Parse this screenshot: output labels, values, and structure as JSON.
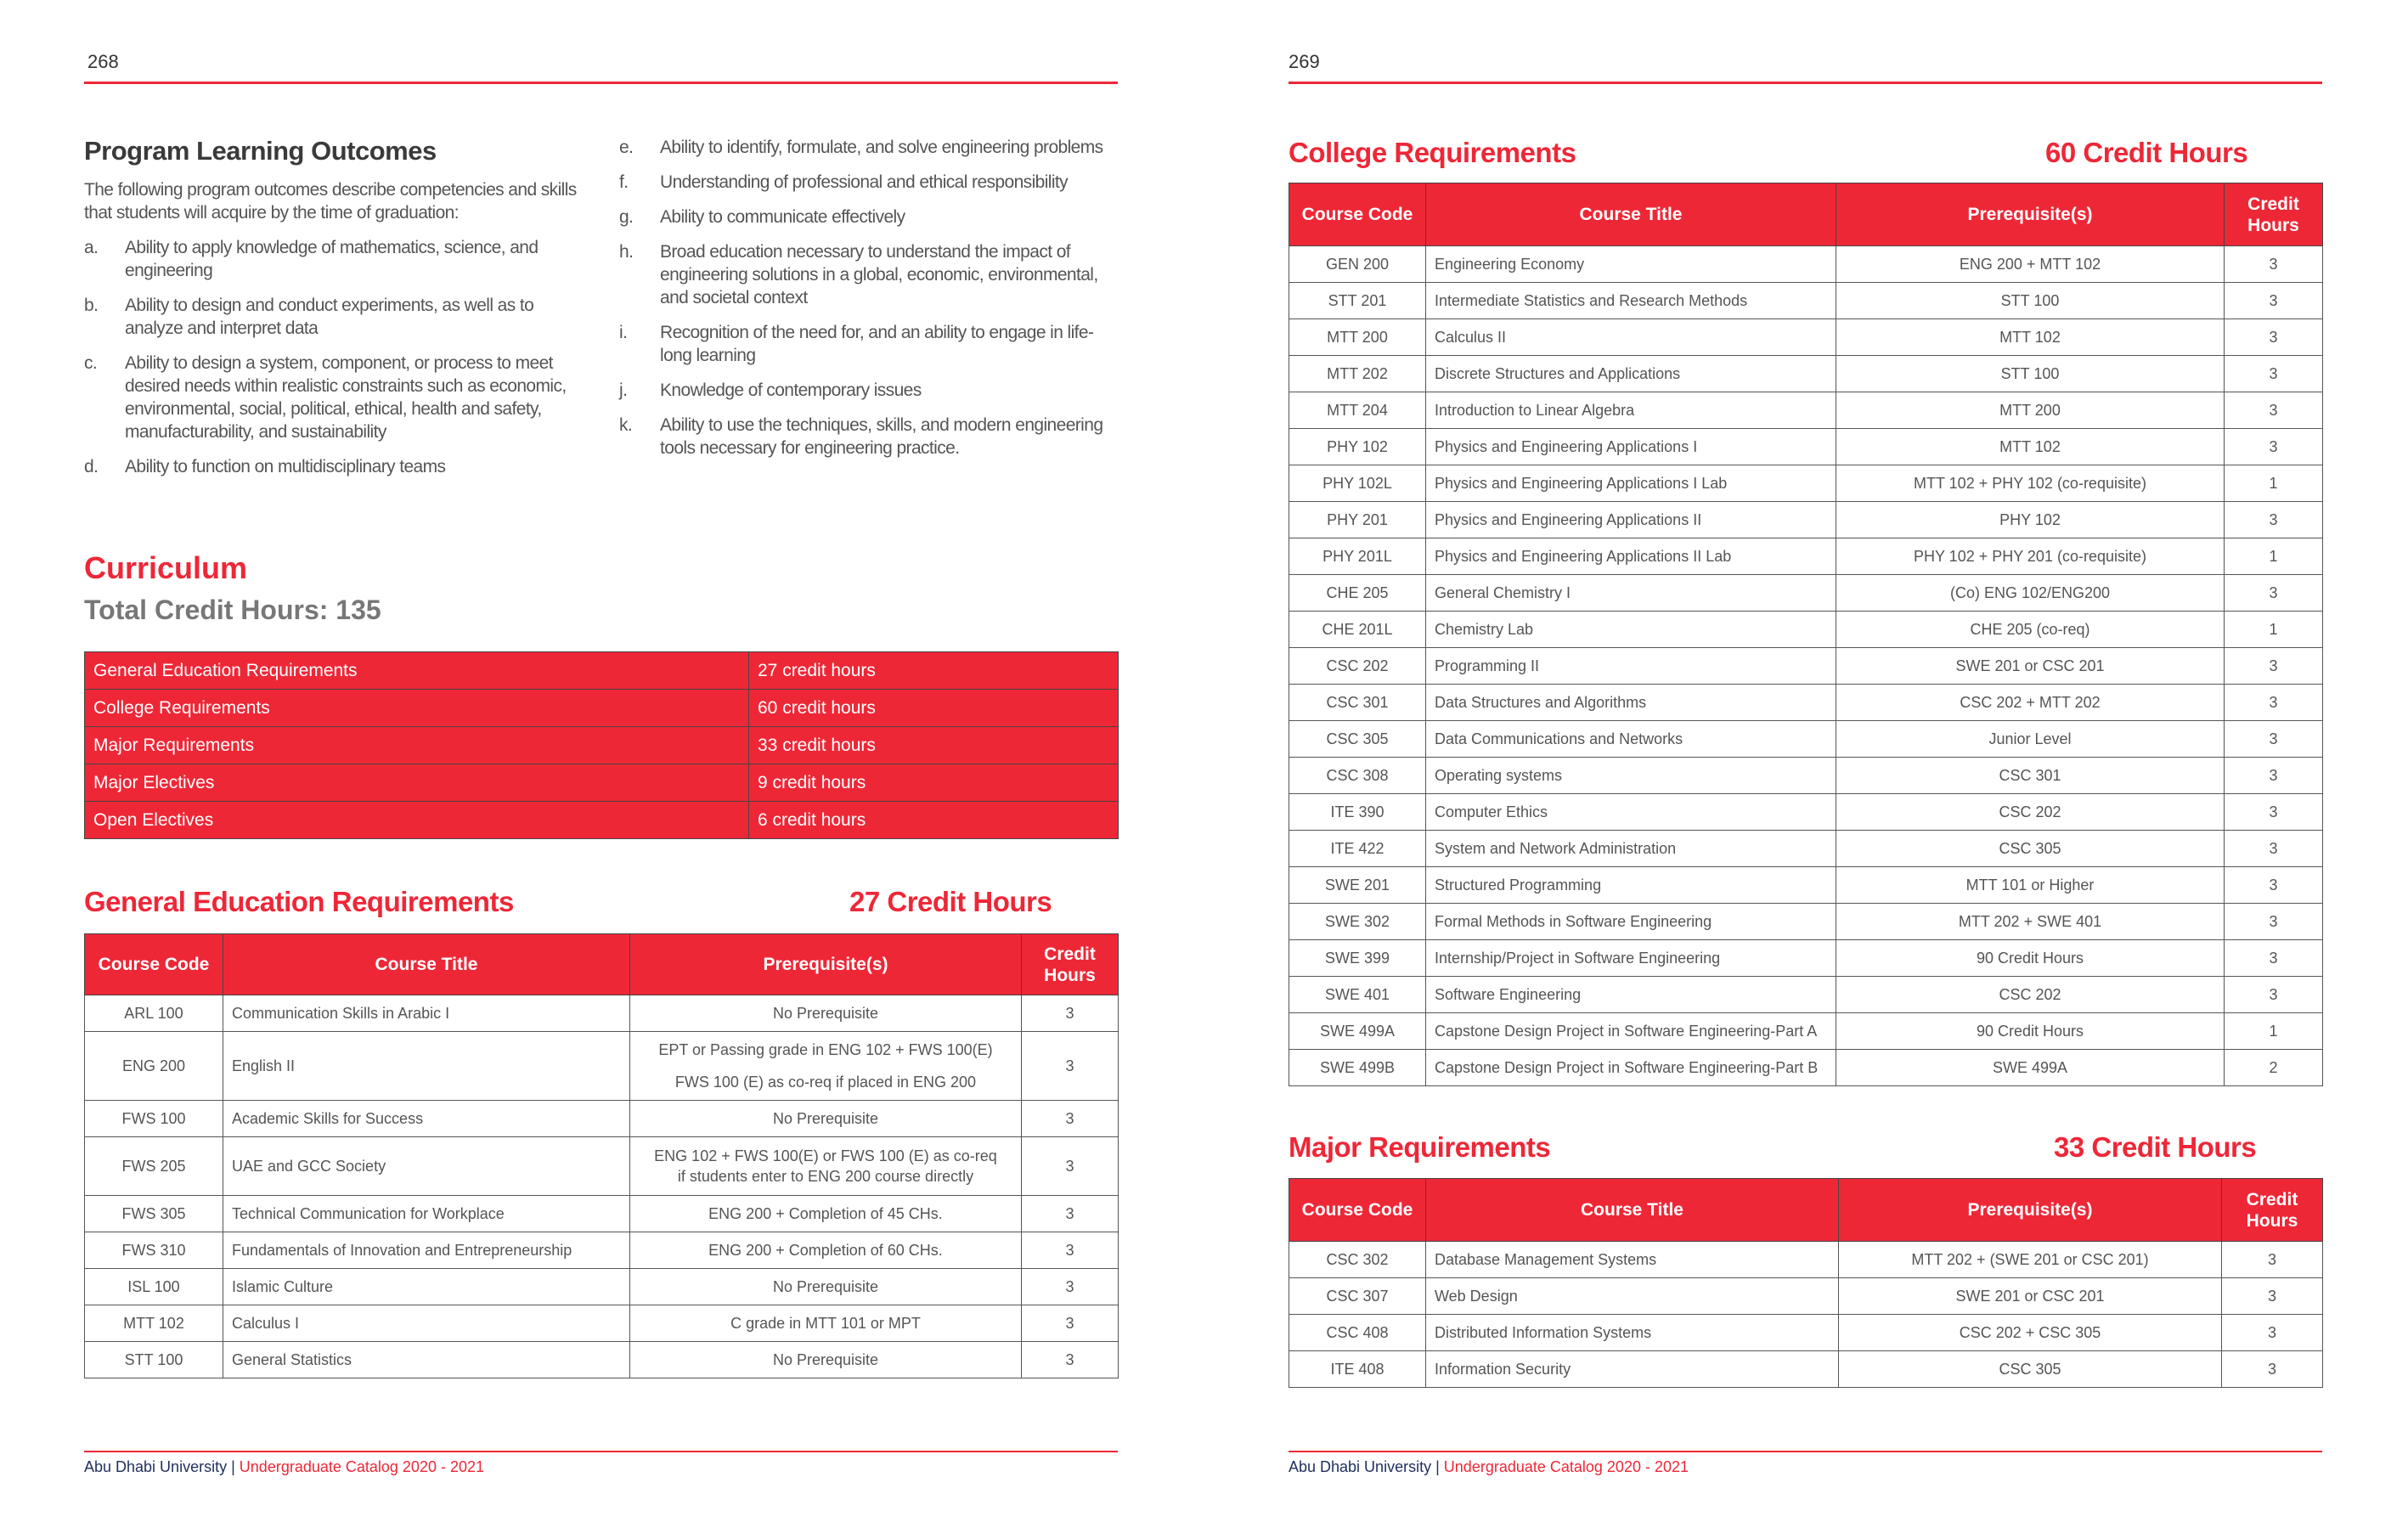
{
  "left_page": {
    "page_number": "268",
    "plo": {
      "title": "Program Learning Outcomes",
      "intro": "The following program outcomes describe competencies and skills that students will acquire by the time of graduation:",
      "items": [
        {
          "letter": "a.",
          "text": "Ability to apply knowledge of mathematics, science, and engineering"
        },
        {
          "letter": "b.",
          "text": "Ability to design and conduct experiments, as well as to analyze and interpret data"
        },
        {
          "letter": "c.",
          "text": "Ability to design a system, component, or process to meet desired needs within realistic constraints such as economic, environmental, social, political, ethical, health and safety, manufacturability, and sustainability"
        },
        {
          "letter": "d.",
          "text": "Ability to function on multidisciplinary teams"
        },
        {
          "letter": "e.",
          "text": "Ability to identify, formulate, and solve engineering problems"
        },
        {
          "letter": "f.",
          "text": "Understanding of professional and ethical responsibility"
        },
        {
          "letter": "g.",
          "text": "Ability to communicate effectively"
        },
        {
          "letter": "h.",
          "text": "Broad education necessary to understand the impact of engineering solutions in a global, economic, environmental, and societal context"
        },
        {
          "letter": "i.",
          "text": "Recognition of the need for, and an ability to engage in life-long learning"
        },
        {
          "letter": "j.",
          "text": "Knowledge of contemporary issues"
        },
        {
          "letter": "k.",
          "text": "Ability to use the techniques, skills, and modern engineering tools necessary for engineering practice."
        }
      ]
    },
    "curriculum": {
      "title": "Curriculum",
      "total": "Total Credit Hours:  135",
      "summary": [
        {
          "label": "General Education Requirements",
          "value": "27 credit hours"
        },
        {
          "label": "College Requirements",
          "value": "60  credit hours"
        },
        {
          "label": "Major Requirements",
          "value": "33  credit hours"
        },
        {
          "label": "Major Electives",
          "value": "9   credit hours"
        },
        {
          "label": "Open Electives",
          "value": "6  credit hours"
        }
      ]
    },
    "gen_ed": {
      "title": "General Education Requirements",
      "credits": "27 Credit Hours",
      "rows": [
        [
          "ARL 100",
          "Communication Skills in Arabic I",
          [
            "No Prerequisite"
          ],
          "3"
        ],
        [
          "ENG 200",
          "English II",
          [
            "EPT or Passing grade in ENG 102 + FWS 100(E)",
            "FWS 100 (E) as co-req if placed in ENG 200"
          ],
          "3"
        ],
        [
          "FWS 100",
          "Academic Skills for Success",
          [
            "No Prerequisite"
          ],
          "3"
        ],
        [
          "FWS 205",
          "UAE and GCC Society",
          [
            "ENG 102 + FWS 100(E) or FWS 100 (E) as co-req if students enter to ENG 200 course directly"
          ],
          "3"
        ],
        [
          "FWS 305",
          "Technical Communication for Workplace",
          [
            "ENG 200 + Completion of 45 CHs."
          ],
          "3"
        ],
        [
          "FWS 310",
          "Fundamentals of Innovation and Entrepreneurship",
          [
            "ENG 200 + Completion of 60 CHs."
          ],
          "3"
        ],
        [
          "ISL 100",
          "Islamic Culture",
          [
            "No Prerequisite"
          ],
          "3"
        ],
        [
          "MTT 102",
          "Calculus I",
          [
            "C grade in MTT 101 or MPT"
          ],
          "3"
        ],
        [
          "STT 100",
          "General Statistics",
          [
            "No Prerequisite"
          ],
          "3"
        ]
      ]
    },
    "footer": {
      "university": "Abu Dhabi University",
      "separator": "|",
      "catalog": "Undergraduate Catalog 2020 - 2021"
    }
  },
  "right_page": {
    "page_number": "269",
    "college": {
      "title": "College Requirements",
      "credits": "60 Credit Hours",
      "rows": [
        [
          "GEN 200",
          "Engineering Economy",
          [
            "ENG 200 + MTT 102"
          ],
          "3"
        ],
        [
          "STT 201",
          "Intermediate Statistics and Research Methods",
          [
            "STT 100"
          ],
          "3"
        ],
        [
          "MTT 200",
          "Calculus II",
          [
            "MTT 102"
          ],
          "3"
        ],
        [
          "MTT 202",
          "Discrete Structures and Applications",
          [
            "STT 100"
          ],
          "3"
        ],
        [
          "MTT 204",
          "Introduction to Linear Algebra",
          [
            "MTT 200"
          ],
          "3"
        ],
        [
          "PHY 102",
          "Physics and Engineering Applications I",
          [
            "MTT 102"
          ],
          "3"
        ],
        [
          "PHY 102L",
          "Physics and Engineering Applications I Lab",
          [
            "MTT 102 + PHY 102 (co-requisite)"
          ],
          "1"
        ],
        [
          "PHY 201",
          "Physics and Engineering Applications II",
          [
            "PHY 102"
          ],
          "3"
        ],
        [
          "PHY 201L",
          "Physics and Engineering Applications II Lab",
          [
            "PHY 102 + PHY 201 (co-requisite)"
          ],
          "1"
        ],
        [
          "CHE 205",
          "General Chemistry I",
          [
            "(Co) ENG 102/ENG200"
          ],
          "3"
        ],
        [
          "CHE 201L",
          "Chemistry Lab",
          [
            "CHE 205 (co-req)"
          ],
          "1"
        ],
        [
          "CSC 202",
          "Programming II",
          [
            "SWE 201 or CSC 201"
          ],
          "3"
        ],
        [
          "CSC 301",
          "Data Structures and Algorithms",
          [
            "CSC 202 + MTT 202"
          ],
          "3"
        ],
        [
          "CSC 305",
          "Data Communications and Networks",
          [
            "Junior Level"
          ],
          "3"
        ],
        [
          "CSC 308",
          "Operating systems",
          [
            "CSC 301"
          ],
          "3"
        ],
        [
          "ITE 390",
          "Computer Ethics",
          [
            "CSC 202"
          ],
          "3"
        ],
        [
          "ITE 422",
          "System and Network Administration",
          [
            "CSC 305"
          ],
          "3"
        ],
        [
          "SWE 201",
          "Structured Programming",
          [
            "MTT 101 or Higher"
          ],
          "3"
        ],
        [
          "SWE 302",
          "Formal Methods in Software Engineering",
          [
            "MTT 202 + SWE 401"
          ],
          "3"
        ],
        [
          "SWE 399",
          "Internship/Project in Software Engineering",
          [
            "90 Credit Hours"
          ],
          "3"
        ],
        [
          "SWE 401",
          "Software Engineering",
          [
            "CSC 202"
          ],
          "3"
        ],
        [
          "SWE 499A",
          "Capstone Design Project in Software Engineering-Part A",
          [
            "90 Credit Hours"
          ],
          "1"
        ],
        [
          "SWE 499B",
          "Capstone Design Project in Software Engineering-Part B",
          [
            "SWE 499A"
          ],
          "2"
        ]
      ]
    },
    "major": {
      "title": "Major Requirements",
      "credits": "33 Credit Hours",
      "rows": [
        [
          "CSC 302",
          "Database Management Systems",
          [
            "MTT 202 + (SWE 201 or CSC 201)"
          ],
          "3"
        ],
        [
          "CSC 307",
          "Web Design",
          [
            "SWE 201 or CSC 201"
          ],
          "3"
        ],
        [
          "CSC 408",
          "Distributed Information Systems",
          [
            "CSC 202 + CSC 305"
          ],
          "3"
        ],
        [
          "ITE 408",
          "Information Security",
          [
            "CSC 305"
          ],
          "3"
        ]
      ]
    },
    "footer": {
      "university": "Abu Dhabi University",
      "separator": "|",
      "catalog": "Undergraduate Catalog 2020 - 2021"
    }
  },
  "table_headers": {
    "code": "Course Code",
    "title": "Course Title",
    "prereq": "Prerequisite(s)",
    "credit": "Credit Hours"
  },
  "colors": {
    "accent": "#ee2737",
    "text": "#555555",
    "footer_blue": "#1f2f5c"
  }
}
